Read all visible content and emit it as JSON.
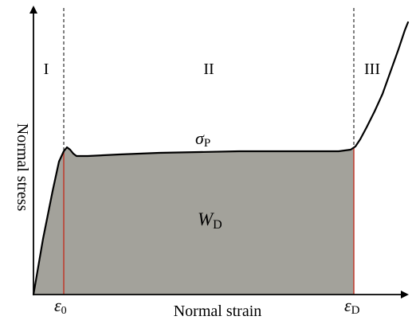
{
  "diagram": {
    "axes": {
      "x_label": "Normal strain",
      "y_label": "Normal stress"
    },
    "regions": [
      "I",
      "II",
      "III"
    ],
    "strain_marks": {
      "epsilon0": {
        "symbol": "ε",
        "subscript": "0"
      },
      "epsilonD": {
        "symbol": "ε",
        "subscript": "D"
      }
    },
    "plateau_stress": {
      "symbol": "σ",
      "subscript": "P"
    },
    "energy_area": {
      "symbol": "W",
      "subscript": "D"
    },
    "colors": {
      "area_fill": "#a3a29b",
      "curve": "#000000",
      "strain_lines": "#c0392b",
      "axes": "#000000",
      "dashed_lines": "#000000"
    }
  }
}
